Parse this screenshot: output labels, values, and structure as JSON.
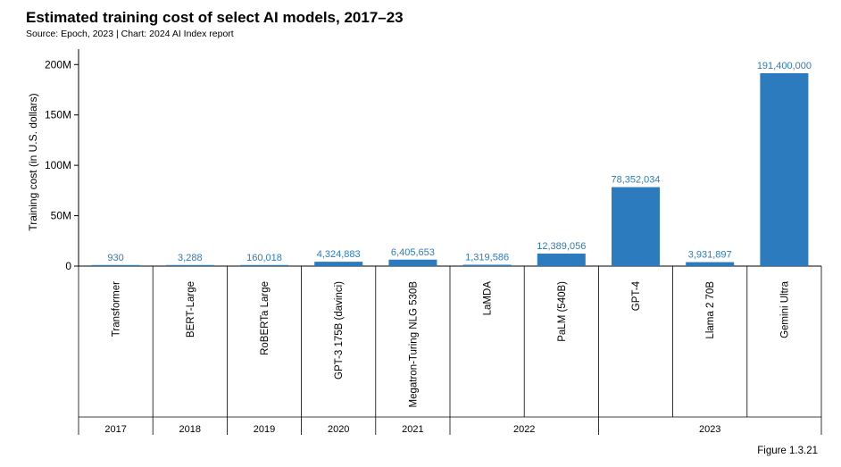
{
  "title": "Estimated training cost of select AI models, 2017–23",
  "subtitle": "Source: Epoch, 2023 | Chart: 2024 AI Index report",
  "figure_label": "Figure 1.3.21",
  "colors": {
    "bar": "#2c7bbf",
    "label": "#2c7bbf",
    "axis": "#000000"
  },
  "chart_data": {
    "type": "bar",
    "ylabel": "Training cost (in U.S. dollars)",
    "ylim": [
      0,
      210000000
    ],
    "yticks": [
      0,
      50000000,
      100000000,
      150000000,
      200000000
    ],
    "ytick_labels": [
      "0",
      "50M",
      "100M",
      "150M",
      "200M"
    ],
    "grid": false,
    "categories": [
      "Transformer",
      "BERT-Large",
      "RoBERTa Large",
      "GPT-3 175B (davinci)",
      "Megatron-Turing NLG 530B",
      "LaMDA",
      "PaLM (540B)",
      "GPT-4",
      "Llama 2 70B",
      "Gemini Ultra"
    ],
    "values": [
      930,
      3288,
      160018,
      4324883,
      6405653,
      1319586,
      12389056,
      78352034,
      3931897,
      191400000
    ],
    "value_labels": [
      "930",
      "3,288",
      "160,018",
      "4,324,883",
      "6,405,653",
      "1,319,586",
      "12,389,056",
      "78,352,034",
      "3,931,897",
      "191,400,000"
    ],
    "year_groups": [
      {
        "label": "2017",
        "count": 1
      },
      {
        "label": "2018",
        "count": 1
      },
      {
        "label": "2019",
        "count": 1
      },
      {
        "label": "2020",
        "count": 1
      },
      {
        "label": "2021",
        "count": 1
      },
      {
        "label": "2022",
        "count": 2
      },
      {
        "label": "2023",
        "count": 3
      }
    ]
  }
}
